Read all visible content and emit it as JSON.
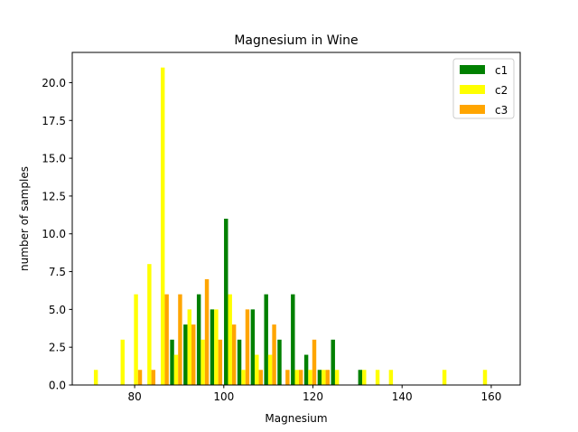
{
  "chart_data": {
    "type": "bar",
    "title": "Magnesium in Wine",
    "xlabel": "Magnesium",
    "ylabel": "number of samples",
    "xlim": [
      66,
      166.5
    ],
    "ylim": [
      0,
      22
    ],
    "xticks": [
      80,
      100,
      120,
      140,
      160
    ],
    "yticks": [
      0.0,
      2.5,
      5.0,
      7.5,
      10.0,
      12.5,
      15.0,
      17.5,
      20.0
    ],
    "grid": false,
    "legend_position": "top-right",
    "bar_width": 0.9,
    "series": [
      {
        "name": "c1",
        "color": "#008000",
        "x": [
          89.3,
          92.3,
          95.3,
          98.3,
          101.4,
          104.4,
          107.4,
          110.4,
          113.4,
          116.4,
          119.4,
          122.4,
          125.4,
          131.5
        ],
        "values": [
          3,
          4,
          6,
          5,
          11,
          3,
          5,
          6,
          3,
          6,
          2,
          1,
          3,
          1
        ]
      },
      {
        "name": "c2",
        "color": "#ffff00",
        "x": [
          71.3,
          77.3,
          80.3,
          83.3,
          86.3,
          89.3,
          92.3,
          95.3,
          98.3,
          101.4,
          104.4,
          107.4,
          110.4,
          116.4,
          119.4,
          122.4,
          125.4,
          131.5,
          134.5,
          137.5,
          149.5,
          158.6
        ],
        "values": [
          1,
          3,
          6,
          8,
          21,
          2,
          5,
          3,
          5,
          6,
          1,
          2,
          2,
          1,
          1,
          1,
          1,
          1,
          1,
          1,
          1,
          1
        ]
      },
      {
        "name": "c3",
        "color": "#ffa500",
        "x": [
          80.3,
          83.3,
          86.3,
          89.3,
          92.3,
          95.3,
          98.3,
          101.4,
          104.4,
          107.4,
          110.4,
          113.4,
          116.4,
          119.4,
          122.4
        ],
        "values": [
          1,
          1,
          6,
          6,
          4,
          7,
          3,
          4,
          5,
          1,
          4,
          1,
          1,
          3,
          1
        ]
      }
    ]
  }
}
